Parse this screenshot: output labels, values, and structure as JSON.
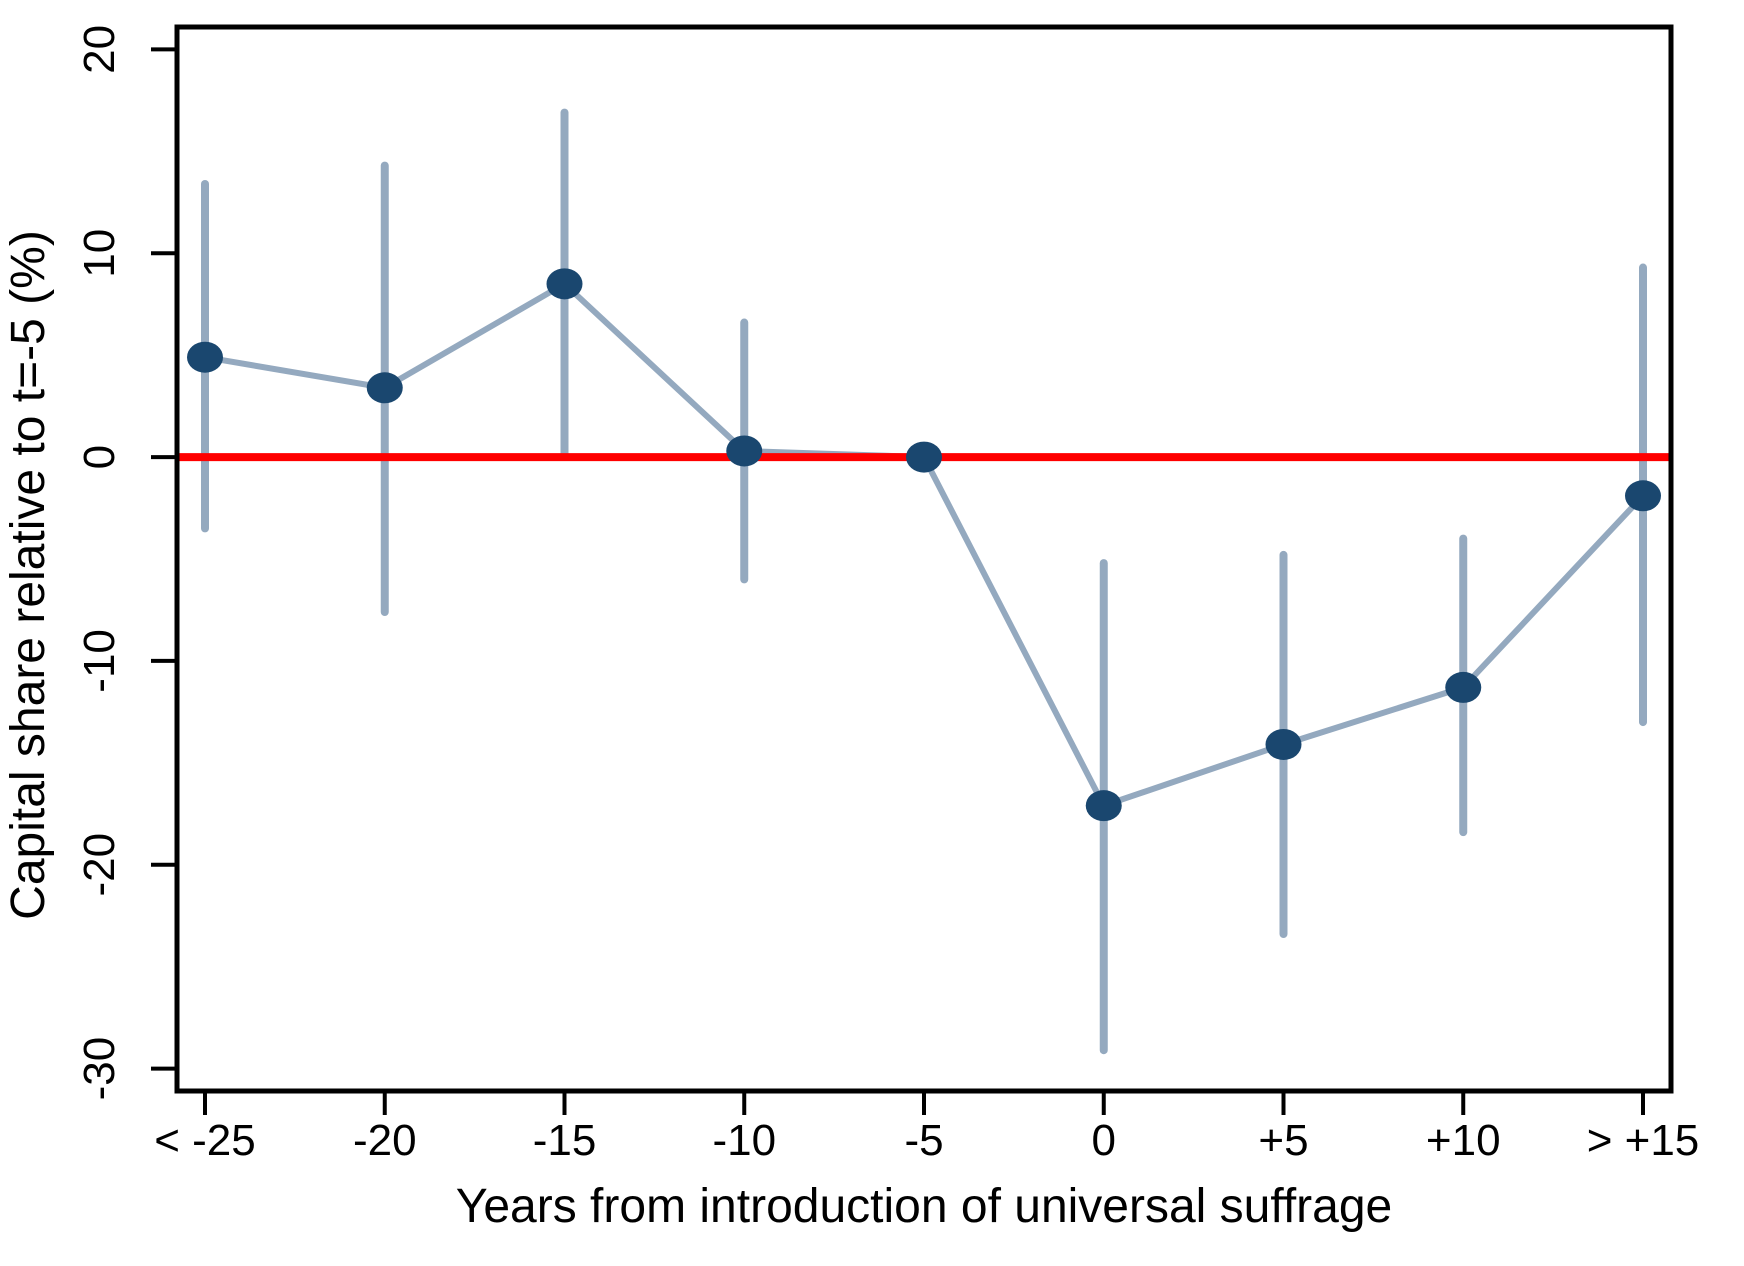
{
  "figure": {
    "background": "#ffffff",
    "description": "Event-study plot of capital share around introduction of universal suffrage"
  },
  "chart_data": {
    "type": "scatter",
    "subtype": "event-study point estimates with CI whiskers and connecting line",
    "title": "",
    "xlabel": "Years from introduction of universal suffrage",
    "ylabel": "Capital share relative to t=-5 (%)",
    "categories": [
      "< -25",
      "-20",
      "-15",
      "-10",
      "-5",
      "0",
      "+5",
      "+10",
      "> +15"
    ],
    "series": [
      {
        "name": "point-estimate",
        "values": [
          4.9,
          3.4,
          8.5,
          0.3,
          0.0,
          -17.1,
          -14.1,
          -11.3,
          -1.9
        ]
      }
    ],
    "ci_low": [
      -3.5,
      -7.6,
      0.1,
      -6.0,
      null,
      -29.1,
      -23.4,
      -18.4,
      -13.0
    ],
    "ci_high": [
      13.4,
      14.3,
      16.9,
      6.6,
      null,
      -5.2,
      -4.8,
      -4.0,
      9.3
    ],
    "reference_line_y": 0,
    "y_ticks": [
      20,
      10,
      0,
      -10,
      -20,
      -30
    ],
    "ylim": [
      -31.1,
      21.1
    ],
    "grid": false,
    "legend": "none",
    "colors": {
      "marker": "#1a476f",
      "ci_line": "#94a9bf",
      "connect_line": "#94a9bf",
      "reference_line": "#ff0000",
      "axis": "#000000",
      "text": "#000000",
      "background": "#ffffff"
    }
  }
}
